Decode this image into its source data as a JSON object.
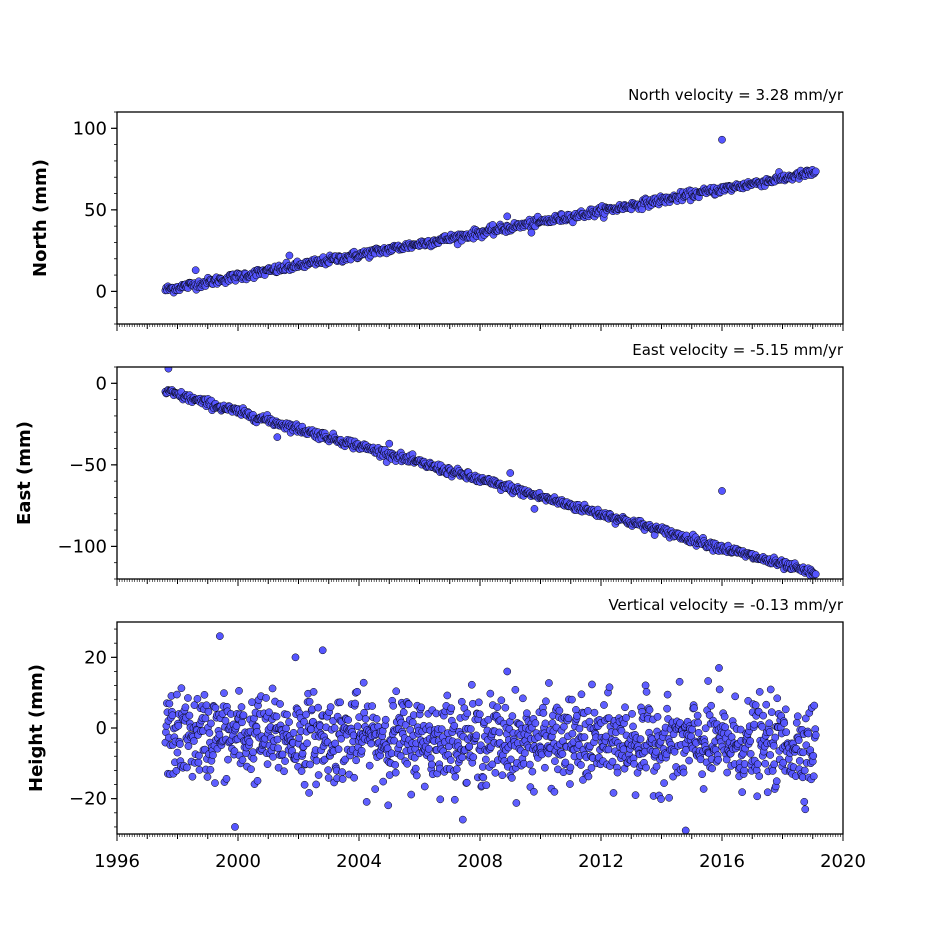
{
  "chart_data": [
    {
      "type": "scatter",
      "annotation": "North velocity = 3.28 mm/yr",
      "ylabel": "North (mm)",
      "xlim": [
        1996,
        2020
      ],
      "ylim": [
        -20,
        110
      ],
      "yticks": [
        0,
        50,
        100
      ],
      "ytick_labels": [
        "0",
        "50",
        "100"
      ],
      "series": [
        {
          "trend": {
            "x": [
              1997.6,
              2019.1
            ],
            "y": [
              1,
              73
            ]
          },
          "scatter_sd": 1.3,
          "n_points": 780,
          "outliers": [
            [
              2016.0,
              93
            ],
            [
              1998.6,
              13
            ],
            [
              2008.9,
              46
            ],
            [
              2009.7,
              36
            ],
            [
              2001.7,
              22
            ]
          ]
        }
      ]
    },
    {
      "type": "scatter",
      "annotation": "East velocity = -5.15 mm/yr",
      "ylabel": "East (mm)",
      "xlim": [
        1996,
        2020
      ],
      "ylim": [
        -120,
        10
      ],
      "yticks": [
        -100,
        -50,
        0
      ],
      "ytick_labels": [
        "−100",
        "−50",
        "0"
      ],
      "series": [
        {
          "trend": {
            "x": [
              1997.6,
              2019.1
            ],
            "y": [
              -5,
              -117
            ]
          },
          "scatter_sd": 1.3,
          "n_points": 780,
          "outliers": [
            [
              1997.7,
              9
            ],
            [
              2016.0,
              -66
            ],
            [
              2009.0,
              -55
            ],
            [
              2009.8,
              -77
            ],
            [
              2001.3,
              -33
            ],
            [
              2005.0,
              -37
            ]
          ]
        }
      ]
    },
    {
      "type": "scatter",
      "annotation": "Vertical velocity = -0.13 mm/yr",
      "ylabel": "Height (mm)",
      "xlim": [
        1996,
        2020
      ],
      "ylim": [
        -30,
        30
      ],
      "yticks": [
        -20,
        0,
        20
      ],
      "ytick_labels": [
        "−20",
        "0",
        "20"
      ],
      "xticks": [
        1996,
        2000,
        2004,
        2008,
        2012,
        2016,
        2020
      ],
      "xtick_labels": [
        "1996",
        "2000",
        "2004",
        "2008",
        "2012",
        "2016",
        "2020"
      ],
      "series": [
        {
          "trend": {
            "x": [
              1997.6,
              2019.1
            ],
            "y": [
              -2,
              -5
            ]
          },
          "scatter_sd": 6,
          "n_points": 1300,
          "outliers": [
            [
              1999.4,
              26
            ],
            [
              2002.8,
              22
            ],
            [
              2001.9,
              20
            ],
            [
              2008.9,
              16
            ],
            [
              2015.9,
              17
            ],
            [
              1999.9,
              -28
            ],
            [
              2014.8,
              -29
            ]
          ]
        }
      ]
    }
  ],
  "colors": {
    "marker_fill": "#5555ff",
    "marker_edge": "#000000"
  }
}
